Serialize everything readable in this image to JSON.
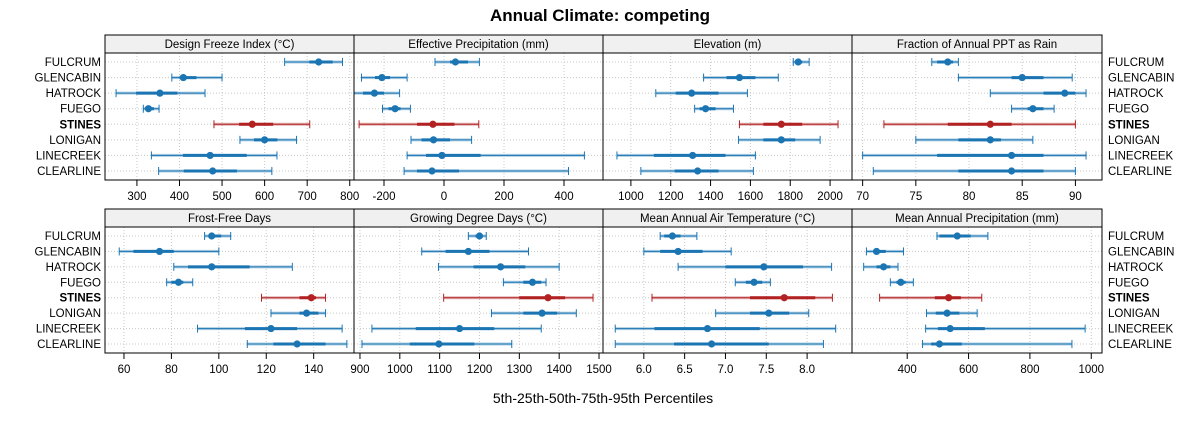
{
  "chart_data": {
    "type": "dotplot-percentile-intervals",
    "title": "Annual Climate: competing",
    "xlabel": "5th-25th-50th-75th-95th Percentiles",
    "rows": [
      "FULCRUM",
      "GLENCABIN",
      "HATROCK",
      "FUEGO",
      "STINES",
      "LONIGAN",
      "LINECREEK",
      "CLEARLINE"
    ],
    "highlight_row": "STINES",
    "colors": {
      "normal": "#1b75b3",
      "highlight": "#b22222",
      "strip_bg": "#f0f0f0",
      "grid": "#c8c8c8"
    },
    "grid": true,
    "panels": [
      {
        "title": "Design Freeze Index (°C)",
        "xlim": [
          225,
          810
        ],
        "ticks": [
          300,
          400,
          500,
          600,
          700,
          800
        ],
        "series": [
          {
            "name": "FULCRUM",
            "p5": 647,
            "p25": 705,
            "p50": 727,
            "p75": 760,
            "p95": 783
          },
          {
            "name": "GLENCABIN",
            "p5": 382,
            "p25": 400,
            "p50": 409,
            "p75": 440,
            "p95": 500
          },
          {
            "name": "HATROCK",
            "p5": 251,
            "p25": 298,
            "p50": 354,
            "p75": 395,
            "p95": 460
          },
          {
            "name": "FUEGO",
            "p5": 315,
            "p25": 320,
            "p50": 327,
            "p75": 340,
            "p95": 352
          },
          {
            "name": "STINES",
            "p5": 481,
            "p25": 540,
            "p50": 571,
            "p75": 620,
            "p95": 706
          },
          {
            "name": "LONIGAN",
            "p5": 542,
            "p25": 575,
            "p50": 600,
            "p75": 630,
            "p95": 675
          },
          {
            "name": "LINECREEK",
            "p5": 334,
            "p25": 408,
            "p50": 472,
            "p75": 558,
            "p95": 629
          },
          {
            "name": "CLEARLINE",
            "p5": 351,
            "p25": 410,
            "p50": 478,
            "p75": 535,
            "p95": 617
          }
        ]
      },
      {
        "title": "Effective Precipitation (mm)",
        "xlim": [
          -300,
          530
        ],
        "ticks": [
          -200,
          0,
          200,
          400
        ],
        "series": [
          {
            "name": "FULCRUM",
            "p5": -30,
            "p25": 20,
            "p50": 38,
            "p75": 80,
            "p95": 118
          },
          {
            "name": "GLENCABIN",
            "p5": -275,
            "p25": -230,
            "p50": -207,
            "p75": -180,
            "p95": -123
          },
          {
            "name": "HATROCK",
            "p5": -300,
            "p25": -270,
            "p50": -232,
            "p75": -200,
            "p95": -148
          },
          {
            "name": "FUEGO",
            "p5": -205,
            "p25": -185,
            "p50": -163,
            "p75": -145,
            "p95": -112
          },
          {
            "name": "STINES",
            "p5": -283,
            "p25": -90,
            "p50": -37,
            "p75": 35,
            "p95": 116
          },
          {
            "name": "LONIGAN",
            "p5": -110,
            "p25": -75,
            "p50": -35,
            "p75": 20,
            "p95": 92
          },
          {
            "name": "LINECREEK",
            "p5": -123,
            "p25": -60,
            "p50": -7,
            "p75": 122,
            "p95": 468
          },
          {
            "name": "CLEARLINE",
            "p5": -133,
            "p25": -90,
            "p50": -40,
            "p75": 50,
            "p95": 415
          }
        ]
      },
      {
        "title": "Elevation (m)",
        "xlim": [
          860,
          2110
        ],
        "ticks": [
          1000,
          1200,
          1400,
          1600,
          1800,
          2000
        ],
        "series": [
          {
            "name": "FULCRUM",
            "p5": 1815,
            "p25": 1830,
            "p50": 1840,
            "p75": 1860,
            "p95": 1895
          },
          {
            "name": "GLENCABIN",
            "p5": 1365,
            "p25": 1480,
            "p50": 1545,
            "p75": 1625,
            "p95": 1740
          },
          {
            "name": "HATROCK",
            "p5": 1125,
            "p25": 1225,
            "p50": 1305,
            "p75": 1440,
            "p95": 1585
          },
          {
            "name": "FUEGO",
            "p5": 1320,
            "p25": 1345,
            "p50": 1375,
            "p75": 1425,
            "p95": 1515
          },
          {
            "name": "STINES",
            "p5": 1545,
            "p25": 1665,
            "p50": 1755,
            "p75": 1860,
            "p95": 2040
          },
          {
            "name": "LONIGAN",
            "p5": 1540,
            "p25": 1665,
            "p50": 1755,
            "p75": 1825,
            "p95": 1950
          },
          {
            "name": "LINECREEK",
            "p5": 930,
            "p25": 1115,
            "p50": 1310,
            "p75": 1475,
            "p95": 1625
          },
          {
            "name": "CLEARLINE",
            "p5": 1050,
            "p25": 1220,
            "p50": 1335,
            "p75": 1440,
            "p95": 1615
          }
        ]
      },
      {
        "title": "Fraction of Annual PPT as Rain",
        "xlim": [
          69,
          92.5
        ],
        "ticks": [
          70,
          75,
          80,
          85,
          90
        ],
        "series": [
          {
            "name": "FULCRUM",
            "p5": 76.5,
            "p25": 77.0,
            "p50": 78.0,
            "p75": 78.5,
            "p95": 79.0
          },
          {
            "name": "GLENCABIN",
            "p5": 79.0,
            "p25": 84.0,
            "p50": 85.0,
            "p75": 87.0,
            "p95": 89.7
          },
          {
            "name": "HATROCK",
            "p5": 82.0,
            "p25": 87.0,
            "p50": 89.0,
            "p75": 90.0,
            "p95": 91.0
          },
          {
            "name": "FUEGO",
            "p5": 84.0,
            "p25": 85.5,
            "p50": 86.0,
            "p75": 87.0,
            "p95": 88.0
          },
          {
            "name": "STINES",
            "p5": 72.0,
            "p25": 78.0,
            "p50": 82.0,
            "p75": 84.0,
            "p95": 90.0
          },
          {
            "name": "LONIGAN",
            "p5": 75.0,
            "p25": 79.0,
            "p50": 82.0,
            "p75": 83.0,
            "p95": 86.0
          },
          {
            "name": "LINECREEK",
            "p5": 70.0,
            "p25": 77.0,
            "p50": 84.0,
            "p75": 87.0,
            "p95": 91.0
          },
          {
            "name": "CLEARLINE",
            "p5": 71.0,
            "p25": 79.0,
            "p50": 84.0,
            "p75": 87.0,
            "p95": 90.0
          }
        ]
      },
      {
        "title": "Frost-Free Days",
        "xlim": [
          52,
          157
        ],
        "ticks": [
          60,
          80,
          100,
          120,
          140
        ],
        "series": [
          {
            "name": "FULCRUM",
            "p5": 94,
            "p25": 96,
            "p50": 97,
            "p75": 101,
            "p95": 105
          },
          {
            "name": "GLENCABIN",
            "p5": 58,
            "p25": 64,
            "p50": 75,
            "p75": 81,
            "p95": 100
          },
          {
            "name": "HATROCK",
            "p5": 81,
            "p25": 87,
            "p50": 97,
            "p75": 113,
            "p95": 131
          },
          {
            "name": "FUEGO",
            "p5": 78,
            "p25": 80,
            "p50": 83,
            "p75": 85,
            "p95": 89
          },
          {
            "name": "STINES",
            "p5": 118,
            "p25": 134,
            "p50": 139,
            "p75": 141,
            "p95": 145
          },
          {
            "name": "LONIGAN",
            "p5": 122,
            "p25": 134,
            "p50": 137,
            "p75": 142,
            "p95": 145
          },
          {
            "name": "LINECREEK",
            "p5": 91,
            "p25": 111,
            "p50": 122,
            "p75": 133,
            "p95": 152
          },
          {
            "name": "CLEARLINE",
            "p5": 112,
            "p25": 123,
            "p50": 133,
            "p75": 145,
            "p95": 154
          }
        ]
      },
      {
        "title": "Growing Degree Days (°C)",
        "xlim": [
          885,
          1510
        ],
        "ticks": [
          900,
          1000,
          1100,
          1200,
          1300,
          1400,
          1500
        ],
        "series": [
          {
            "name": "FULCRUM",
            "p5": 1172,
            "p25": 1190,
            "p50": 1200,
            "p75": 1205,
            "p95": 1217
          },
          {
            "name": "GLENCABIN",
            "p5": 1055,
            "p25": 1115,
            "p50": 1172,
            "p75": 1225,
            "p95": 1323
          },
          {
            "name": "HATROCK",
            "p5": 1097,
            "p25": 1185,
            "p50": 1253,
            "p75": 1315,
            "p95": 1400
          },
          {
            "name": "FUEGO",
            "p5": 1260,
            "p25": 1310,
            "p50": 1333,
            "p75": 1355,
            "p95": 1367
          },
          {
            "name": "STINES",
            "p5": 1110,
            "p25": 1300,
            "p50": 1372,
            "p75": 1415,
            "p95": 1485
          },
          {
            "name": "LONIGAN",
            "p5": 1230,
            "p25": 1310,
            "p50": 1357,
            "p75": 1395,
            "p95": 1443
          },
          {
            "name": "LINECREEK",
            "p5": 930,
            "p25": 1040,
            "p50": 1150,
            "p75": 1237,
            "p95": 1355
          },
          {
            "name": "CLEARLINE",
            "p5": 905,
            "p25": 1025,
            "p50": 1098,
            "p75": 1187,
            "p95": 1281
          }
        ]
      },
      {
        "title": "Mean Annual Air Temperature (°C)",
        "xlim": [
          5.5,
          8.55
        ],
        "ticks": [
          6.0,
          6.5,
          7.0,
          7.5,
          8.0
        ],
        "tick_labels": [
          "6.0",
          "6.5",
          "7.0",
          "7.5",
          "8.0"
        ],
        "series": [
          {
            "name": "FULCRUM",
            "p5": 6.2,
            "p25": 6.25,
            "p50": 6.35,
            "p75": 6.45,
            "p95": 6.65
          },
          {
            "name": "GLENCABIN",
            "p5": 6.0,
            "p25": 6.2,
            "p50": 6.42,
            "p75": 6.72,
            "p95": 7.07
          },
          {
            "name": "HATROCK",
            "p5": 6.42,
            "p25": 7.0,
            "p50": 7.47,
            "p75": 7.95,
            "p95": 8.3
          },
          {
            "name": "FUEGO",
            "p5": 7.12,
            "p25": 7.25,
            "p50": 7.35,
            "p75": 7.45,
            "p95": 7.55
          },
          {
            "name": "STINES",
            "p5": 6.1,
            "p25": 7.3,
            "p50": 7.72,
            "p75": 8.1,
            "p95": 8.31
          },
          {
            "name": "LONIGAN",
            "p5": 6.88,
            "p25": 7.3,
            "p50": 7.53,
            "p75": 7.78,
            "p95": 8.02
          },
          {
            "name": "LINECREEK",
            "p5": 5.65,
            "p25": 6.13,
            "p50": 6.78,
            "p75": 7.42,
            "p95": 8.35
          },
          {
            "name": "CLEARLINE",
            "p5": 5.65,
            "p25": 6.37,
            "p50": 6.83,
            "p75": 7.53,
            "p95": 8.2
          }
        ]
      },
      {
        "title": "Mean Annual Precipitation (mm)",
        "xlim": [
          220,
          1035
        ],
        "ticks": [
          400,
          600,
          800,
          1000
        ],
        "series": [
          {
            "name": "FULCRUM",
            "p5": 497,
            "p25": 505,
            "p50": 563,
            "p75": 607,
            "p95": 663
          },
          {
            "name": "GLENCABIN",
            "p5": 267,
            "p25": 290,
            "p50": 300,
            "p75": 330,
            "p95": 388
          },
          {
            "name": "HATROCK",
            "p5": 258,
            "p25": 300,
            "p50": 323,
            "p75": 345,
            "p95": 370
          },
          {
            "name": "FUEGO",
            "p5": 345,
            "p25": 365,
            "p50": 379,
            "p75": 395,
            "p95": 420
          },
          {
            "name": "STINES",
            "p5": 310,
            "p25": 490,
            "p50": 535,
            "p75": 575,
            "p95": 643
          },
          {
            "name": "LONIGAN",
            "p5": 463,
            "p25": 493,
            "p50": 530,
            "p75": 570,
            "p95": 628
          },
          {
            "name": "LINECREEK",
            "p5": 460,
            "p25": 500,
            "p50": 540,
            "p75": 653,
            "p95": 980
          },
          {
            "name": "CLEARLINE",
            "p5": 450,
            "p25": 478,
            "p50": 505,
            "p75": 578,
            "p95": 937
          }
        ]
      }
    ]
  }
}
